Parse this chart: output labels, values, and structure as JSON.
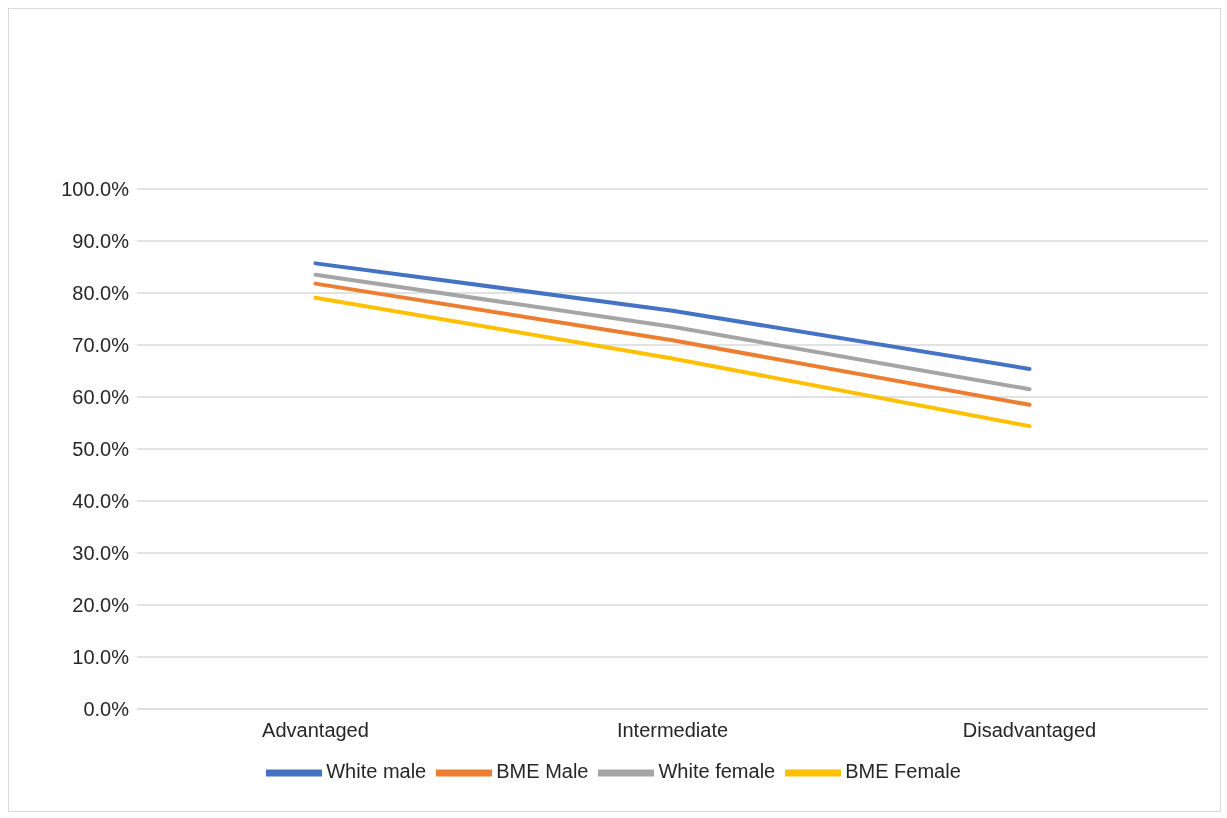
{
  "chart_data": {
    "type": "line",
    "categories": [
      "Advantaged",
      "Intermediate",
      "Disadvantaged"
    ],
    "series": [
      {
        "name": "White male",
        "color": "#4472c4",
        "values": [
          85.7,
          76.6,
          65.4
        ]
      },
      {
        "name": "BME Male",
        "color": "#ed7d31",
        "values": [
          81.8,
          70.9,
          58.5
        ]
      },
      {
        "name": "White female",
        "color": "#a5a5a5",
        "values": [
          83.5,
          73.5,
          61.5
        ]
      },
      {
        "name": "BME Female",
        "color": "#ffc000",
        "values": [
          79.1,
          67.4,
          54.4
        ]
      }
    ],
    "ylim": [
      0,
      100
    ],
    "yticks": [
      {
        "value": 0,
        "label": "0.0%"
      },
      {
        "value": 10,
        "label": "10.0%"
      },
      {
        "value": 20,
        "label": "20.0%"
      },
      {
        "value": 30,
        "label": "30.0%"
      },
      {
        "value": 40,
        "label": "40.0%"
      },
      {
        "value": 50,
        "label": "50.0%"
      },
      {
        "value": 60,
        "label": "60.0%"
      },
      {
        "value": 70,
        "label": "70.0%"
      },
      {
        "value": 80,
        "label": "80.0%"
      },
      {
        "value": 90,
        "label": "90.0%"
      },
      {
        "value": 100,
        "label": "100.0%"
      }
    ],
    "grid": "y",
    "legend": "bottom",
    "marker": "none",
    "line_style": "solid"
  }
}
